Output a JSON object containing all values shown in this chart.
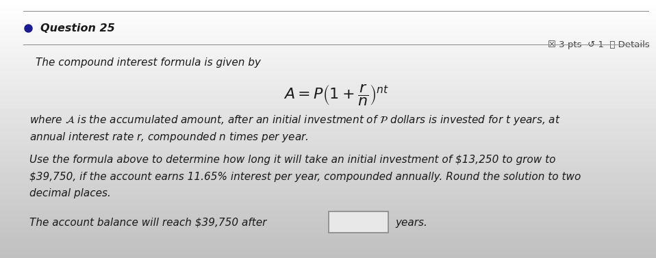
{
  "fig_width": 9.58,
  "fig_height": 3.77,
  "dpi": 100,
  "bg_color": "#c8c8c8",
  "panel_color": "#f0f0f0",
  "question_label": "Question 25",
  "question_dot_color": "#1a1a99",
  "pts_text": "☒ 3 pts  ↺ 1  ⓘ Details",
  "line1": "The compound interest formula is given by",
  "formula": "$A = P\\left(1 + \\dfrac{r}{n}\\right)^{nt}$",
  "where_line1": "where $\\mathcal{A}$ is the accumulated amount, after an initial investment of $\\mathcal{P}$ dollars is invested for $t$ years, at",
  "where_line2": "annual interest rate $r$, compounded $n$ times per year.",
  "use_line1": "Use the formula above to determine how long it will take an initial investment of $13,250 to grow to",
  "use_line2": "$39,750, if the account earns 11.65% interest per year, compounded annually. Round the solution to two",
  "use_line3": "decimal places.",
  "answer_prefix": "The account balance will reach $39,750 after",
  "answer_suffix": "years.",
  "separator_color": "#888888",
  "text_color": "#1a1a1a",
  "pts_color": "#444444",
  "font_size_question": 11.5,
  "font_size_pts": 9.5,
  "font_size_body": 11.0,
  "font_size_formula": 16,
  "box_edge_color": "#888888",
  "box_face_color": "#e8e8e8"
}
